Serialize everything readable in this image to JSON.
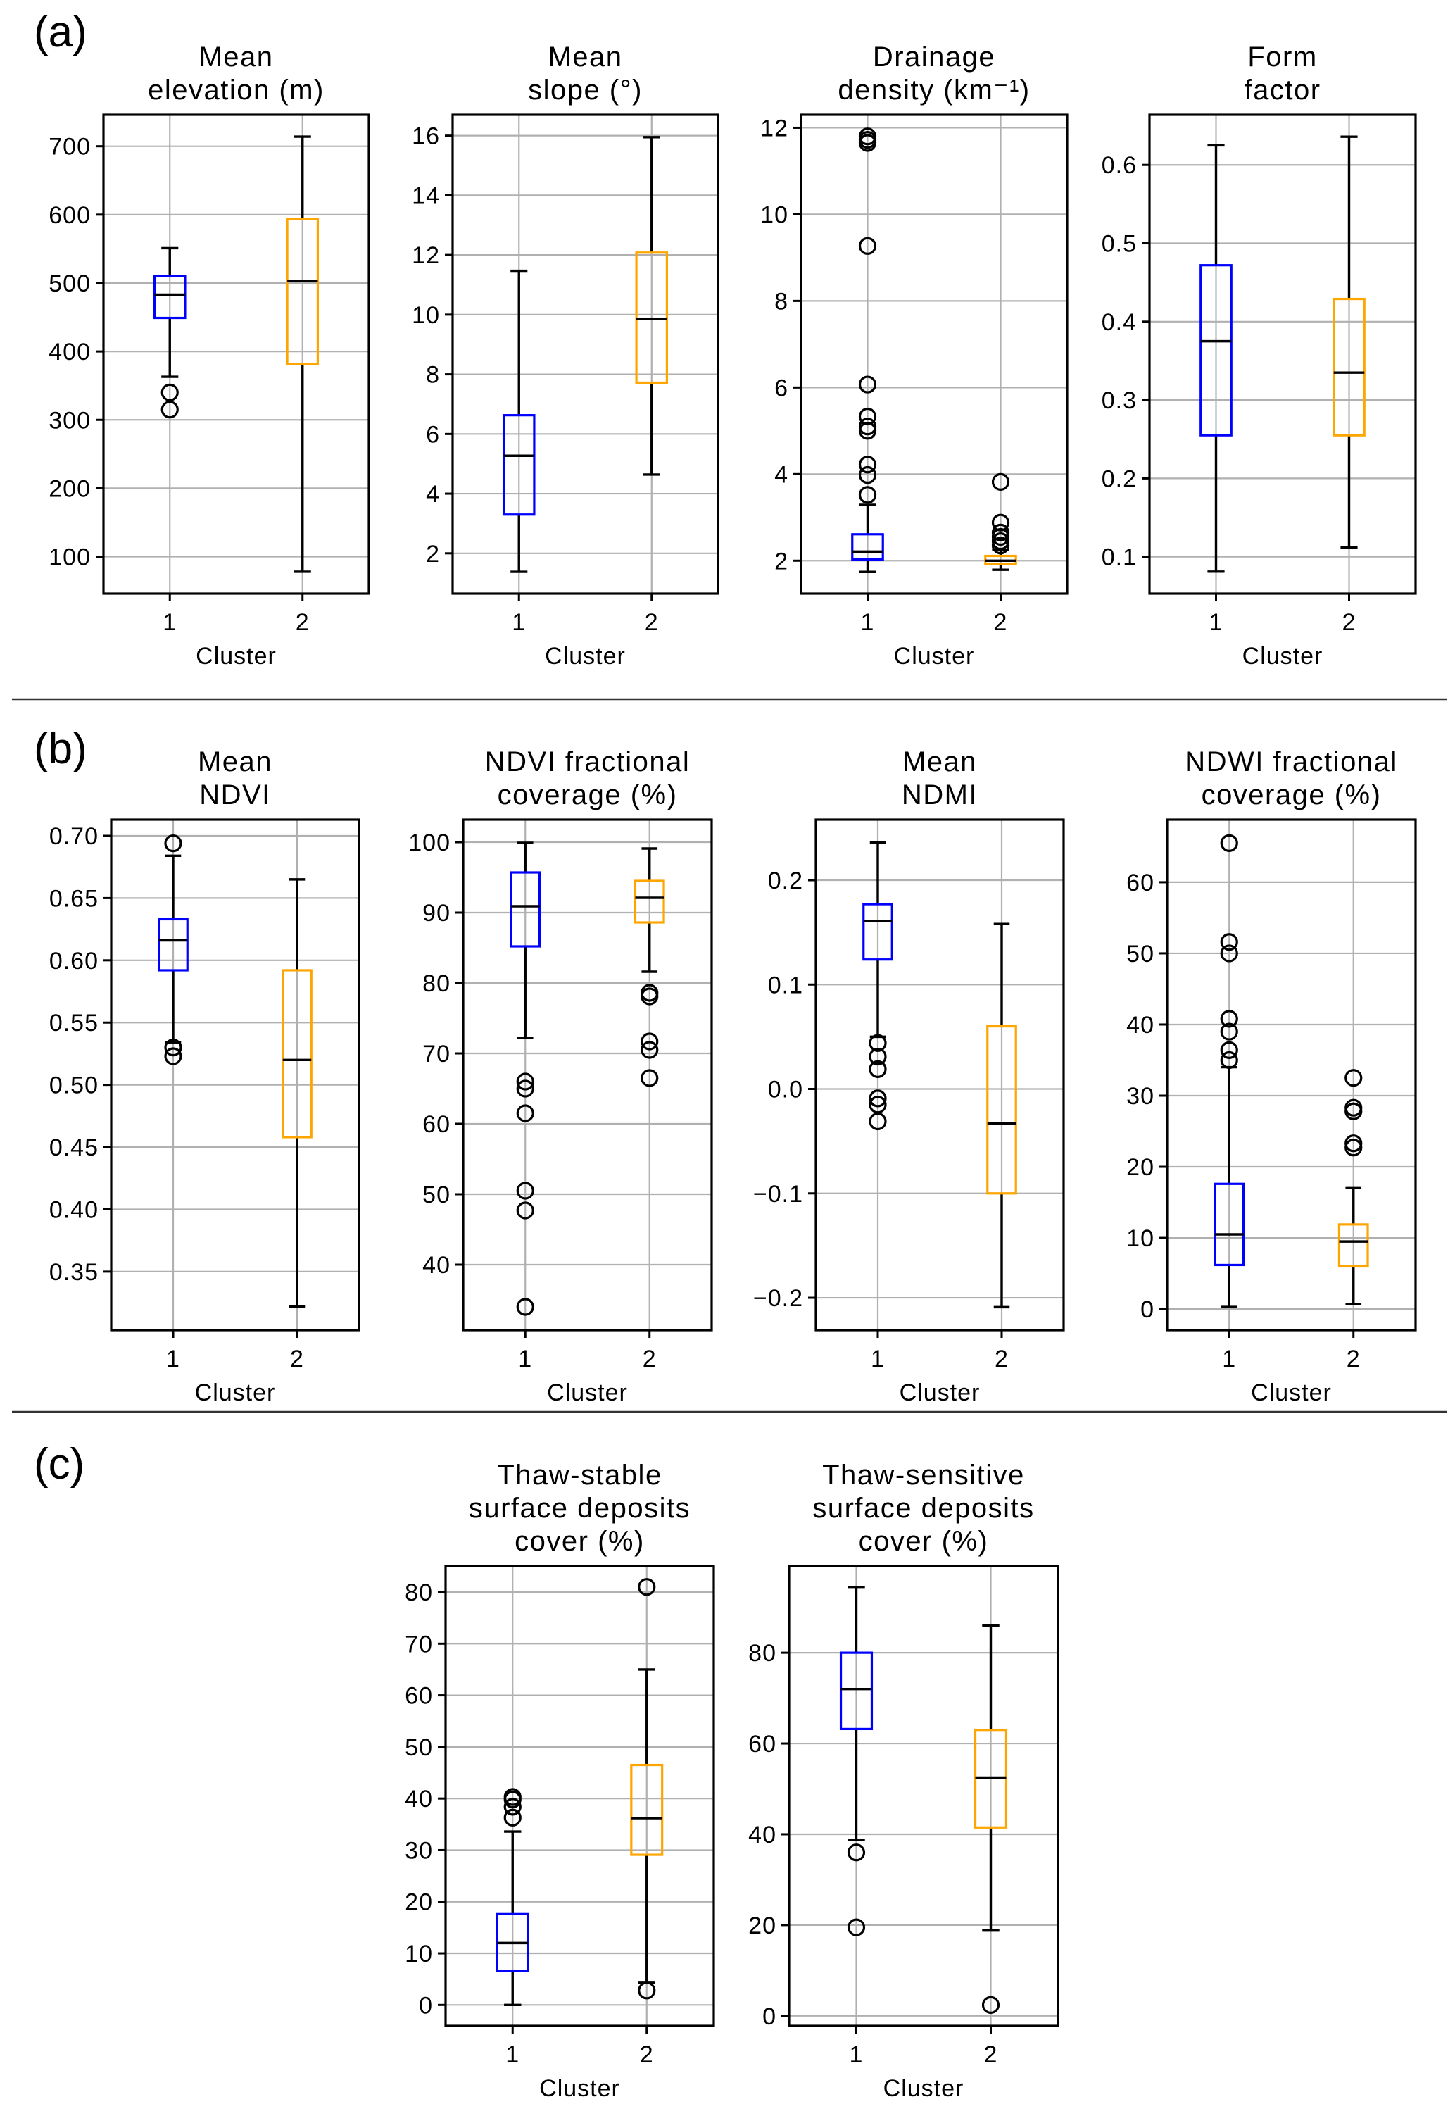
{
  "figure": {
    "panels": [
      {
        "label": "(a)"
      },
      {
        "label": "(b)"
      },
      {
        "label": "(c)"
      }
    ]
  },
  "colors": {
    "cluster1_box": "#0000ff",
    "cluster2_box": "#ffa500",
    "whisker": "#000000",
    "grid": "#b0b0b0"
  },
  "chart_data": [
    {
      "panel": "(a)",
      "type": "boxplot",
      "title": [
        "Mean",
        "elevation (m)"
      ],
      "xlabel": "Cluster",
      "ylabel": "",
      "categories": [
        "1",
        "2"
      ],
      "ylim": [
        46,
        746
      ],
      "yticks": [
        100,
        200,
        300,
        400,
        500,
        600,
        700
      ],
      "ytick_labels": [
        "100",
        "200",
        "300",
        "400",
        "500",
        "600",
        "700"
      ],
      "grid": true,
      "series": [
        {
          "name": "1",
          "whisker_low": 363,
          "q1": 449,
          "median": 483,
          "q3": 510,
          "whisker_high": 551,
          "fliers": [
            340,
            315
          ]
        },
        {
          "name": "2",
          "whisker_low": 78,
          "q1": 382,
          "median": 503,
          "q3": 594,
          "whisker_high": 714,
          "fliers": []
        }
      ]
    },
    {
      "panel": "(a)",
      "type": "boxplot",
      "title": [
        "Mean",
        "slope (°)"
      ],
      "xlabel": "Cluster",
      "ylabel": "",
      "categories": [
        "1",
        "2"
      ],
      "ylim": [
        0.65,
        16.7
      ],
      "yticks": [
        2,
        4,
        6,
        8,
        10,
        12,
        14,
        16
      ],
      "ytick_labels": [
        "2",
        "4",
        "6",
        "8",
        "10",
        "12",
        "14",
        "16"
      ],
      "grid": true,
      "series": [
        {
          "name": "1",
          "whisker_low": 1.38,
          "q1": 3.3,
          "median": 5.27,
          "q3": 6.63,
          "whisker_high": 11.47,
          "fliers": []
        },
        {
          "name": "2",
          "whisker_low": 4.64,
          "q1": 7.72,
          "median": 9.85,
          "q3": 12.08,
          "whisker_high": 15.95,
          "fliers": []
        }
      ]
    },
    {
      "panel": "(a)",
      "type": "boxplot",
      "title": [
        "Drainage",
        "density (km⁻¹)"
      ],
      "xlabel": "Cluster",
      "ylabel": "",
      "categories": [
        "1",
        "2"
      ],
      "ylim": [
        1.24,
        12.3
      ],
      "yticks": [
        2,
        4,
        6,
        8,
        10,
        12
      ],
      "ytick_labels": [
        "2",
        "4",
        "6",
        "8",
        "10",
        "12"
      ],
      "grid": true,
      "series": [
        {
          "name": "1",
          "whisker_low": 1.74,
          "q1": 2.03,
          "median": 2.21,
          "q3": 2.61,
          "whisker_high": 3.29,
          "fliers": [
            11.8,
            11.72,
            11.65,
            9.27,
            6.07,
            5.33,
            5.1,
            5.0,
            4.22,
            3.98,
            3.52
          ]
        },
        {
          "name": "2",
          "whisker_low": 1.79,
          "q1": 1.93,
          "median": 2.0,
          "q3": 2.11,
          "whisker_high": 2.25,
          "fliers": [
            3.82,
            2.88,
            2.65,
            2.55,
            2.45,
            2.35
          ]
        }
      ]
    },
    {
      "panel": "(a)",
      "type": "boxplot",
      "title": [
        "Form",
        "factor"
      ],
      "xlabel": "Cluster",
      "ylabel": "",
      "categories": [
        "1",
        "2"
      ],
      "ylim": [
        0.053,
        0.664
      ],
      "yticks": [
        0.1,
        0.2,
        0.3,
        0.4,
        0.5,
        0.6
      ],
      "ytick_labels": [
        "0.1",
        "0.2",
        "0.3",
        "0.4",
        "0.5",
        "0.6"
      ],
      "grid": true,
      "series": [
        {
          "name": "1",
          "whisker_low": 0.081,
          "q1": 0.255,
          "median": 0.375,
          "q3": 0.472,
          "whisker_high": 0.625,
          "fliers": []
        },
        {
          "name": "2",
          "whisker_low": 0.112,
          "q1": 0.255,
          "median": 0.335,
          "q3": 0.429,
          "whisker_high": 0.636,
          "fliers": []
        }
      ]
    },
    {
      "panel": "(b)",
      "type": "boxplot",
      "title": [
        "Mean",
        "NDVI"
      ],
      "xlabel": "Cluster",
      "ylabel": "",
      "categories": [
        "1",
        "2"
      ],
      "ylim": [
        0.303,
        0.713
      ],
      "yticks": [
        0.35,
        0.4,
        0.45,
        0.5,
        0.55,
        0.6,
        0.65,
        0.7
      ],
      "ytick_labels": [
        "0.35",
        "0.40",
        "0.45",
        "0.50",
        "0.55",
        "0.60",
        "0.65",
        "0.70"
      ],
      "grid": true,
      "series": [
        {
          "name": "1",
          "whisker_low": 0.534,
          "q1": 0.592,
          "median": 0.616,
          "q3": 0.633,
          "whisker_high": 0.684,
          "fliers": [
            0.694,
            0.53,
            0.523
          ]
        },
        {
          "name": "2",
          "whisker_low": 0.322,
          "q1": 0.458,
          "median": 0.52,
          "q3": 0.592,
          "whisker_high": 0.665,
          "fliers": []
        }
      ]
    },
    {
      "panel": "(b)",
      "type": "boxplot",
      "title": [
        "NDVI fractional",
        "coverage (%)"
      ],
      "xlabel": "Cluster",
      "ylabel": "",
      "categories": [
        "1",
        "2"
      ],
      "ylim": [
        30.7,
        103.2
      ],
      "yticks": [
        40,
        50,
        60,
        70,
        80,
        90,
        100
      ],
      "ytick_labels": [
        "40",
        "50",
        "60",
        "70",
        "80",
        "90",
        "100"
      ],
      "grid": true,
      "series": [
        {
          "name": "1",
          "whisker_low": 72.2,
          "q1": 85.2,
          "median": 90.9,
          "q3": 95.7,
          "whisker_high": 99.9,
          "fliers": [
            66.0,
            65.0,
            61.5,
            50.5,
            47.7,
            34.0
          ]
        },
        {
          "name": "2",
          "whisker_low": 81.6,
          "q1": 88.6,
          "median": 92.1,
          "q3": 94.5,
          "whisker_high": 99.1,
          "fliers": [
            78.6,
            78.1,
            71.7,
            70.5,
            66.5
          ]
        }
      ]
    },
    {
      "panel": "(b)",
      "type": "boxplot",
      "title": [
        "Mean",
        "NDMI"
      ],
      "xlabel": "Cluster",
      "ylabel": "",
      "categories": [
        "1",
        "2"
      ],
      "ylim": [
        -0.231,
        0.258
      ],
      "yticks": [
        -0.2,
        -0.1,
        0.0,
        0.1,
        0.2
      ],
      "ytick_labels": [
        "−0.2",
        "−0.1",
        "0.0",
        "0.1",
        "0.2"
      ],
      "grid": true,
      "series": [
        {
          "name": "1",
          "whisker_low": 0.05,
          "q1": 0.124,
          "median": 0.161,
          "q3": 0.177,
          "whisker_high": 0.236,
          "fliers": [
            0.044,
            0.031,
            0.019,
            -0.009,
            -0.015,
            -0.031
          ]
        },
        {
          "name": "2",
          "whisker_low": -0.209,
          "q1": -0.1,
          "median": -0.033,
          "q3": 0.06,
          "whisker_high": 0.158,
          "fliers": []
        }
      ]
    },
    {
      "panel": "(b)",
      "type": "boxplot",
      "title": [
        "NDWI fractional",
        "coverage (%)"
      ],
      "xlabel": "Cluster",
      "ylabel": "",
      "categories": [
        "1",
        "2"
      ],
      "ylim": [
        -2.96,
        68.8
      ],
      "yticks": [
        0,
        10,
        20,
        30,
        40,
        50,
        60
      ],
      "ytick_labels": [
        "0",
        "10",
        "20",
        "30",
        "40",
        "50",
        "60"
      ],
      "grid": true,
      "series": [
        {
          "name": "1",
          "whisker_low": 0.3,
          "q1": 6.2,
          "median": 10.5,
          "q3": 17.6,
          "whisker_high": 34.0,
          "fliers": [
            65.5,
            51.6,
            50.0,
            40.8,
            39.0,
            36.4,
            35.0
          ]
        },
        {
          "name": "2",
          "whisker_low": 0.7,
          "q1": 6.0,
          "median": 9.5,
          "q3": 11.9,
          "whisker_high": 17.0,
          "fliers": [
            32.5,
            28.3,
            27.8,
            23.3,
            22.7
          ]
        }
      ]
    },
    {
      "panel": "(c)",
      "type": "boxplot",
      "title": [
        "Thaw-stable",
        "surface deposits",
        "cover (%)"
      ],
      "xlabel": "Cluster",
      "ylabel": "",
      "categories": [
        "1",
        "2"
      ],
      "ylim": [
        -4.05,
        85.05
      ],
      "yticks": [
        0,
        10,
        20,
        30,
        40,
        50,
        60,
        70,
        80
      ],
      "ytick_labels": [
        "0",
        "10",
        "20",
        "30",
        "40",
        "50",
        "60",
        "70",
        "80"
      ],
      "grid": true,
      "series": [
        {
          "name": "1",
          "whisker_low": 0.0,
          "q1": 6.6,
          "median": 12.0,
          "q3": 17.6,
          "whisker_high": 33.6,
          "fliers": [
            40.3,
            39.8,
            38.4,
            36.3
          ]
        },
        {
          "name": "2",
          "whisker_low": 4.3,
          "q1": 29.1,
          "median": 36.2,
          "q3": 46.5,
          "whisker_high": 65.0,
          "fliers": [
            81.0,
            2.8
          ]
        }
      ]
    },
    {
      "panel": "(c)",
      "type": "boxplot",
      "title": [
        "Thaw-sensitive",
        "surface deposits",
        "cover (%)"
      ],
      "xlabel": "Cluster",
      "ylabel": "",
      "categories": [
        "1",
        "2"
      ],
      "ylim": [
        -2.2,
        99.1
      ],
      "yticks": [
        0,
        20,
        40,
        60,
        80
      ],
      "ytick_labels": [
        "0",
        "20",
        "40",
        "60",
        "80"
      ],
      "grid": true,
      "series": [
        {
          "name": "1",
          "whisker_low": 38.8,
          "q1": 63.2,
          "median": 72.0,
          "q3": 80.0,
          "whisker_high": 94.5,
          "fliers": [
            36.0,
            19.5
          ]
        },
        {
          "name": "2",
          "whisker_low": 18.8,
          "q1": 41.5,
          "median": 52.5,
          "q3": 63.0,
          "whisker_high": 86.0,
          "fliers": [
            2.4
          ]
        }
      ]
    }
  ]
}
